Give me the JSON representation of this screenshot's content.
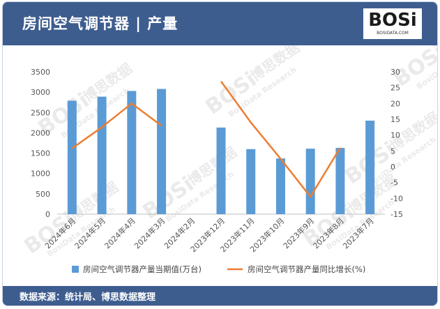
{
  "header": {
    "title": "房间空气调节器 | 产量"
  },
  "logo": {
    "text": "BOSi",
    "sub": "BOSIDATA.COM"
  },
  "footer": {
    "source": "数据来源：统计局、博思数据整理"
  },
  "watermark": {
    "brand": "BOSi",
    "cn": "博思数据",
    "en": "BosiData Research"
  },
  "colors": {
    "header_bg": "#3e5d8f",
    "bar": "#5b9bd5",
    "line": "#ed7d31"
  },
  "chart_data": {
    "type": "bar",
    "categories": [
      "2024年6月",
      "2024年5月",
      "2024年4月",
      "2024年3月",
      "2024年2月",
      "2023年12月",
      "2023年11月",
      "2023年10月",
      "2023年9月",
      "2023年8月",
      "2023年7月"
    ],
    "series": [
      {
        "name": "房间空气调节器产量当期值(万台)",
        "type": "bar",
        "axis": "left",
        "values": [
          2790,
          2890,
          3030,
          3080,
          null,
          2130,
          1600,
          1370,
          1610,
          1630,
          2300
        ]
      },
      {
        "name": "房间空气调节器产量同比增长(%)",
        "type": "line",
        "axis": "right",
        "values": [
          5.8,
          12.5,
          20,
          13,
          null,
          27,
          14,
          2.5,
          -9.5,
          6,
          null
        ]
      }
    ],
    "y_left": {
      "min": 0,
      "max": 3500,
      "ticks": [
        0,
        500,
        1000,
        1500,
        2000,
        2500,
        3000,
        3500
      ]
    },
    "y_right": {
      "min": -15,
      "max": 30,
      "ticks": [
        -15,
        -10,
        -5,
        0,
        5,
        10,
        15,
        20,
        25,
        30
      ]
    },
    "legend_position": "bottom",
    "grid": false
  }
}
